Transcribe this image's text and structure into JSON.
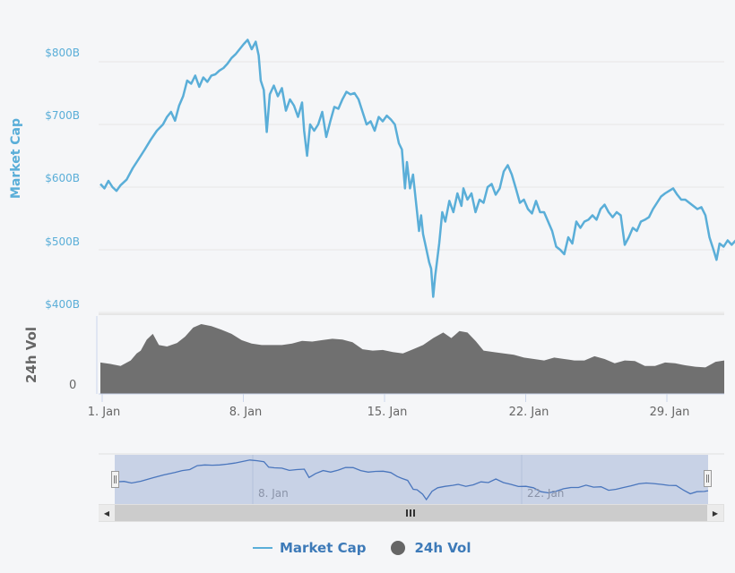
{
  "chart_data": {
    "type": "line",
    "title": "",
    "xlabel": "",
    "ylabel": "Market Cap",
    "series": [
      {
        "name": "Market Cap",
        "axis": "Market Cap",
        "color": "#5aaed8",
        "type": "line",
        "points_days_from_jan1": [
          [
            0.0,
            605
          ],
          [
            0.2,
            598
          ],
          [
            0.4,
            610
          ],
          [
            0.6,
            600
          ],
          [
            0.8,
            594
          ],
          [
            1.0,
            603
          ],
          [
            1.3,
            612
          ],
          [
            1.6,
            630
          ],
          [
            1.9,
            645
          ],
          [
            2.2,
            660
          ],
          [
            2.5,
            676
          ],
          [
            2.8,
            690
          ],
          [
            3.1,
            700
          ],
          [
            3.3,
            712
          ],
          [
            3.5,
            720
          ],
          [
            3.7,
            706
          ],
          [
            3.9,
            730
          ],
          [
            4.1,
            745
          ],
          [
            4.3,
            770
          ],
          [
            4.5,
            765
          ],
          [
            4.7,
            778
          ],
          [
            4.9,
            760
          ],
          [
            5.1,
            775
          ],
          [
            5.3,
            768
          ],
          [
            5.5,
            778
          ],
          [
            5.7,
            780
          ],
          [
            5.9,
            786
          ],
          [
            6.1,
            790
          ],
          [
            6.3,
            797
          ],
          [
            6.5,
            806
          ],
          [
            6.7,
            812
          ],
          [
            6.9,
            820
          ],
          [
            7.1,
            828
          ],
          [
            7.3,
            835
          ],
          [
            7.5,
            820
          ],
          [
            7.7,
            832
          ],
          [
            7.85,
            810
          ],
          [
            7.95,
            770
          ],
          [
            8.1,
            755
          ],
          [
            8.25,
            688
          ],
          [
            8.4,
            748
          ],
          [
            8.6,
            762
          ],
          [
            8.8,
            745
          ],
          [
            9.0,
            758
          ],
          [
            9.2,
            722
          ],
          [
            9.4,
            740
          ],
          [
            9.6,
            730
          ],
          [
            9.8,
            712
          ],
          [
            10.0,
            735
          ],
          [
            10.1,
            690
          ],
          [
            10.25,
            650
          ],
          [
            10.4,
            700
          ],
          [
            10.6,
            690
          ],
          [
            10.8,
            700
          ],
          [
            11.0,
            720
          ],
          [
            11.2,
            680
          ],
          [
            11.4,
            705
          ],
          [
            11.6,
            728
          ],
          [
            11.8,
            725
          ],
          [
            12.0,
            740
          ],
          [
            12.2,
            752
          ],
          [
            12.4,
            748
          ],
          [
            12.6,
            750
          ],
          [
            12.8,
            740
          ],
          [
            13.0,
            720
          ],
          [
            13.2,
            700
          ],
          [
            13.4,
            705
          ],
          [
            13.6,
            690
          ],
          [
            13.8,
            712
          ],
          [
            14.0,
            705
          ],
          [
            14.2,
            714
          ],
          [
            14.4,
            708
          ],
          [
            14.6,
            700
          ],
          [
            14.8,
            670
          ],
          [
            14.95,
            660
          ],
          [
            15.1,
            598
          ],
          [
            15.2,
            640
          ],
          [
            15.35,
            598
          ],
          [
            15.5,
            620
          ],
          [
            15.7,
            560
          ],
          [
            15.8,
            530
          ],
          [
            15.9,
            555
          ],
          [
            16.0,
            525
          ],
          [
            16.1,
            510
          ],
          [
            16.3,
            480
          ],
          [
            16.4,
            470
          ],
          [
            16.5,
            425
          ],
          [
            16.6,
            458
          ],
          [
            16.8,
            510
          ],
          [
            16.95,
            560
          ],
          [
            17.1,
            545
          ],
          [
            17.3,
            578
          ],
          [
            17.5,
            560
          ],
          [
            17.7,
            590
          ],
          [
            17.9,
            570
          ],
          [
            18.0,
            598
          ],
          [
            18.2,
            580
          ],
          [
            18.4,
            590
          ],
          [
            18.6,
            560
          ],
          [
            18.8,
            580
          ],
          [
            19.0,
            575
          ],
          [
            19.2,
            600
          ],
          [
            19.4,
            605
          ],
          [
            19.6,
            588
          ],
          [
            19.8,
            598
          ],
          [
            20.0,
            625
          ],
          [
            20.2,
            635
          ],
          [
            20.4,
            620
          ],
          [
            20.6,
            598
          ],
          [
            20.8,
            575
          ],
          [
            21.0,
            580
          ],
          [
            21.2,
            565
          ],
          [
            21.4,
            558
          ],
          [
            21.6,
            578
          ],
          [
            21.8,
            560
          ],
          [
            22.0,
            560
          ],
          [
            22.2,
            545
          ],
          [
            22.4,
            530
          ],
          [
            22.6,
            505
          ],
          [
            22.8,
            500
          ],
          [
            23.0,
            493
          ],
          [
            23.2,
            520
          ],
          [
            23.4,
            510
          ],
          [
            23.6,
            545
          ],
          [
            23.8,
            535
          ],
          [
            24.0,
            545
          ],
          [
            24.2,
            548
          ],
          [
            24.4,
            555
          ],
          [
            24.6,
            548
          ],
          [
            24.8,
            565
          ],
          [
            25.0,
            572
          ],
          [
            25.2,
            560
          ],
          [
            25.4,
            552
          ],
          [
            25.6,
            560
          ],
          [
            25.8,
            555
          ],
          [
            26.0,
            508
          ],
          [
            26.2,
            520
          ],
          [
            26.4,
            535
          ],
          [
            26.6,
            530
          ],
          [
            26.8,
            545
          ],
          [
            27.0,
            548
          ],
          [
            27.2,
            552
          ],
          [
            27.4,
            565
          ],
          [
            27.6,
            575
          ],
          [
            27.8,
            585
          ],
          [
            28.0,
            590
          ],
          [
            28.2,
            594
          ],
          [
            28.4,
            598
          ],
          [
            28.6,
            588
          ],
          [
            28.8,
            580
          ],
          [
            29.0,
            580
          ],
          [
            29.2,
            575
          ],
          [
            29.4,
            570
          ],
          [
            29.6,
            565
          ],
          [
            29.8,
            568
          ],
          [
            30.0,
            555
          ],
          [
            30.2,
            520
          ],
          [
            30.4,
            500
          ],
          [
            30.55,
            484
          ],
          [
            30.7,
            510
          ],
          [
            30.9,
            505
          ],
          [
            31.1,
            515
          ],
          [
            31.3,
            508
          ],
          [
            31.5,
            515
          ]
        ]
      },
      {
        "name": "24h Vol",
        "axis": "24h Vol",
        "color": "#707070",
        "type": "area",
        "relative_height_days_from_jan1": [
          [
            0.0,
            0.45
          ],
          [
            0.5,
            0.43
          ],
          [
            1.0,
            0.4
          ],
          [
            1.5,
            0.48
          ],
          [
            1.8,
            0.58
          ],
          [
            2.0,
            0.62
          ],
          [
            2.3,
            0.78
          ],
          [
            2.6,
            0.86
          ],
          [
            2.9,
            0.7
          ],
          [
            3.3,
            0.68
          ],
          [
            3.8,
            0.73
          ],
          [
            4.2,
            0.82
          ],
          [
            4.6,
            0.95
          ],
          [
            5.0,
            1.0
          ],
          [
            5.5,
            0.97
          ],
          [
            6.0,
            0.92
          ],
          [
            6.5,
            0.86
          ],
          [
            7.0,
            0.77
          ],
          [
            7.5,
            0.72
          ],
          [
            8.0,
            0.7
          ],
          [
            8.5,
            0.7
          ],
          [
            9.0,
            0.7
          ],
          [
            9.5,
            0.72
          ],
          [
            10.0,
            0.76
          ],
          [
            10.5,
            0.75
          ],
          [
            11.0,
            0.77
          ],
          [
            11.5,
            0.79
          ],
          [
            12.0,
            0.78
          ],
          [
            12.5,
            0.74
          ],
          [
            13.0,
            0.64
          ],
          [
            13.5,
            0.62
          ],
          [
            14.0,
            0.63
          ],
          [
            14.5,
            0.6
          ],
          [
            15.0,
            0.58
          ],
          [
            15.5,
            0.64
          ],
          [
            16.0,
            0.7
          ],
          [
            16.5,
            0.8
          ],
          [
            17.0,
            0.88
          ],
          [
            17.4,
            0.8
          ],
          [
            17.8,
            0.9
          ],
          [
            18.2,
            0.88
          ],
          [
            18.6,
            0.76
          ],
          [
            19.0,
            0.62
          ],
          [
            19.5,
            0.6
          ],
          [
            20.0,
            0.58
          ],
          [
            20.5,
            0.56
          ],
          [
            21.0,
            0.52
          ],
          [
            21.5,
            0.5
          ],
          [
            22.0,
            0.48
          ],
          [
            22.5,
            0.52
          ],
          [
            23.0,
            0.5
          ],
          [
            23.5,
            0.48
          ],
          [
            24.0,
            0.48
          ],
          [
            24.5,
            0.54
          ],
          [
            25.0,
            0.5
          ],
          [
            25.5,
            0.44
          ],
          [
            26.0,
            0.48
          ],
          [
            26.5,
            0.47
          ],
          [
            27.0,
            0.4
          ],
          [
            27.5,
            0.4
          ],
          [
            28.0,
            0.45
          ],
          [
            28.5,
            0.44
          ],
          [
            29.0,
            0.41
          ],
          [
            29.5,
            0.39
          ],
          [
            30.0,
            0.38
          ],
          [
            30.5,
            0.46
          ],
          [
            31.0,
            0.48
          ],
          [
            31.5,
            0.4
          ]
        ]
      }
    ],
    "y_axis_market_cap": {
      "label": "Market Cap",
      "ticks": [
        "$800B",
        "$700B",
        "$600B",
        "$500B",
        "$400B"
      ],
      "values": [
        800,
        700,
        600,
        500,
        400
      ],
      "ylim": [
        400,
        800
      ]
    },
    "y_axis_volume": {
      "label": "24h Vol",
      "ticks": [
        "0"
      ]
    },
    "x_axis": {
      "ticks": [
        "1. Jan",
        "8. Jan",
        "15. Jan",
        "22. Jan",
        "29. Jan"
      ],
      "tick_days": [
        0,
        7,
        14,
        21,
        28
      ]
    },
    "navigator": {
      "labels": [
        "8. Jan",
        "22. Jan"
      ]
    },
    "legend": {
      "position": "bottom",
      "items": [
        "Market Cap",
        "24h Vol"
      ]
    },
    "grid": true
  },
  "legend": {
    "market_cap_label": "Market Cap",
    "volume_label": "24h Vol"
  },
  "axes": {
    "market_cap_title": "Market Cap",
    "volume_title": "24h Vol",
    "volume_zero": "0",
    "y_ticks": [
      "$800B",
      "$700B",
      "$600B",
      "$500B",
      "$400B"
    ],
    "x_ticks": [
      "1. Jan",
      "8. Jan",
      "15. Jan",
      "22. Jan",
      "29. Jan"
    ]
  },
  "navigator": {
    "label_1": "8. Jan",
    "label_2": "22. Jan"
  },
  "scrollbar": {
    "left_arrow": "◀",
    "right_arrow": "▶"
  },
  "colors": {
    "market_cap_line": "#5aaed8",
    "volume_area": "#707070",
    "navigator_fill": "#c8d2e6",
    "navigator_line": "#4a76bd",
    "legend_text": "#3d7ab8",
    "background": "#f5f6f8"
  }
}
